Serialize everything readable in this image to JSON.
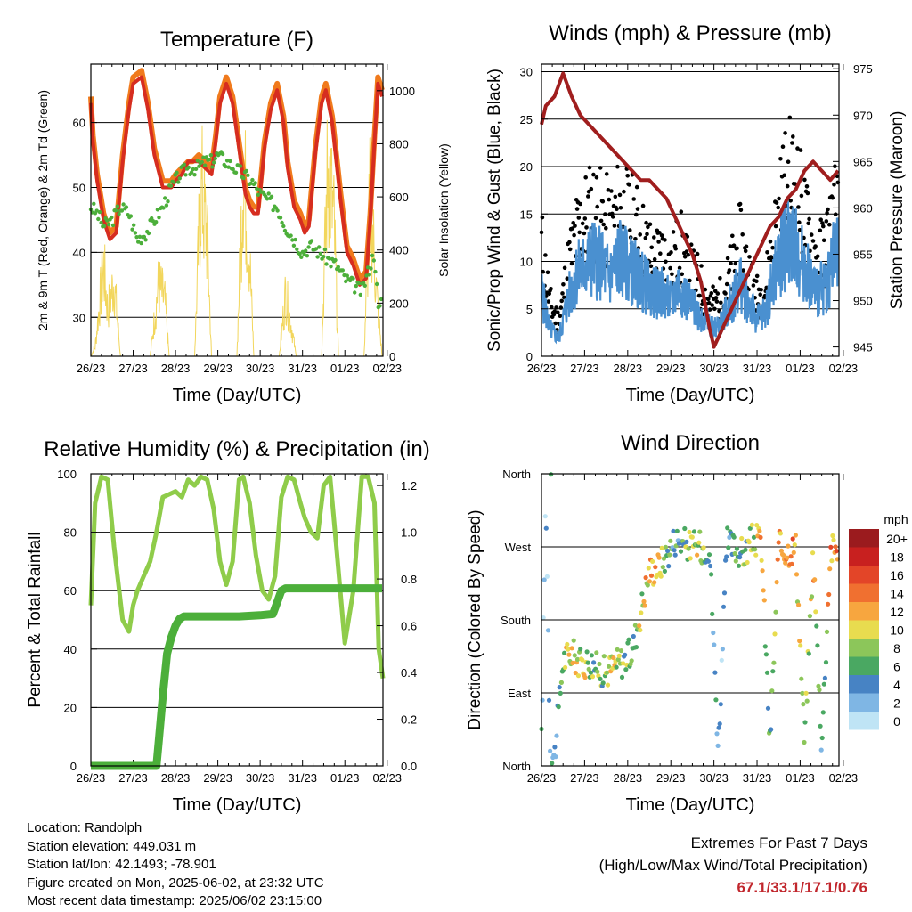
{
  "chart_data": [
    {
      "type": "line",
      "title": "Temperature (F)",
      "xlabel": "Time (Day/UTC)",
      "ylabel": "2m & 9m T (Red, Orange) & 2m Td (Green)",
      "y2label": "Solar Insolation (Yellow)",
      "x_ticks": [
        "26/23",
        "27/23",
        "28/23",
        "29/23",
        "30/23",
        "31/23",
        "01/23",
        "02/23"
      ],
      "ylim": [
        24,
        69
      ],
      "y_ticks": [
        30,
        40,
        50,
        60
      ],
      "y2lim": [
        0,
        1100
      ],
      "y2_ticks": [
        0,
        200,
        400,
        600,
        800,
        1000
      ],
      "colors": {
        "t2m": "#d62d20",
        "t9m": "#f07a1c",
        "td": "#4caf3a",
        "solar": "#f2d65c"
      },
      "series": [
        {
          "key": "t9m",
          "x": [
            0,
            0.05,
            0.15,
            0.3,
            0.45,
            0.6,
            0.75,
            0.9,
            1.0,
            1.2,
            1.35,
            1.5,
            1.7,
            1.9,
            2.0,
            2.15,
            2.3,
            2.4,
            2.55,
            2.7,
            2.85,
            2.95,
            3.05,
            3.2,
            3.35,
            3.5,
            3.65,
            3.75,
            3.85,
            3.95,
            4.1,
            4.25,
            4.4,
            4.55,
            4.65,
            4.8,
            4.95,
            5.05,
            5.15,
            5.3,
            5.45,
            5.55,
            5.7,
            5.9,
            6.05,
            6.2,
            6.35,
            6.5,
            6.6,
            6.7,
            6.78,
            6.88
          ],
          "y": [
            64,
            58,
            52,
            46,
            43,
            44,
            55,
            63,
            67,
            68,
            63,
            56,
            51,
            51,
            52,
            53,
            54,
            54,
            55,
            54,
            53,
            58,
            64,
            67,
            64,
            57,
            50,
            48,
            47,
            47,
            57,
            63,
            66,
            61,
            54,
            48,
            46,
            44,
            45,
            56,
            64,
            66,
            61,
            49,
            41,
            39,
            36,
            37,
            46,
            58,
            67,
            65
          ]
        },
        {
          "key": "t2m",
          "x": [
            0,
            0.05,
            0.15,
            0.3,
            0.45,
            0.6,
            0.75,
            0.9,
            1.0,
            1.2,
            1.35,
            1.5,
            1.7,
            1.9,
            2.0,
            2.15,
            2.3,
            2.4,
            2.55,
            2.7,
            2.85,
            2.95,
            3.05,
            3.2,
            3.35,
            3.5,
            3.65,
            3.75,
            3.85,
            3.95,
            4.1,
            4.25,
            4.4,
            4.55,
            4.65,
            4.8,
            4.95,
            5.05,
            5.15,
            5.3,
            5.45,
            5.55,
            5.7,
            5.9,
            6.05,
            6.2,
            6.35,
            6.5,
            6.6,
            6.7,
            6.78,
            6.88
          ],
          "y": [
            63,
            57,
            51,
            45,
            42,
            43,
            54,
            62,
            66,
            67,
            62,
            55,
            50,
            50,
            51,
            52,
            54,
            54,
            54,
            53,
            52,
            57,
            63,
            66,
            63,
            56,
            49,
            47,
            46,
            46,
            56,
            62,
            65,
            60,
            53,
            47,
            45,
            43,
            44,
            55,
            63,
            65,
            60,
            48,
            40,
            38,
            35,
            36,
            45,
            57,
            66,
            64
          ]
        },
        {
          "key": "td",
          "x": [
            0,
            0.15,
            0.3,
            0.5,
            0.7,
            0.9,
            1.1,
            1.3,
            1.5,
            1.7,
            1.9,
            2.1,
            2.3,
            2.5,
            2.7,
            2.85,
            3.0,
            3.2,
            3.4,
            3.6,
            3.8,
            4.0,
            4.2,
            4.4,
            4.6,
            4.8,
            5.0,
            5.2,
            5.4,
            5.6,
            5.8,
            6.0,
            6.2,
            6.4,
            6.55,
            6.7,
            6.8,
            6.88
          ],
          "y": [
            47,
            46,
            44,
            45,
            47,
            46,
            42,
            43,
            45,
            47,
            50,
            52,
            53,
            53,
            54,
            54,
            55,
            54,
            53,
            52,
            51,
            49,
            48,
            47,
            44,
            42,
            40,
            41,
            40,
            39,
            38,
            36,
            35,
            34,
            37,
            40,
            30,
            34
          ]
        },
        {
          "key": "solar",
          "x": [
            0,
            0.1,
            0.3,
            0.4,
            0.55,
            0.7,
            1.4,
            1.6,
            1.75,
            1.85,
            2.0,
            2.45,
            2.6,
            2.75,
            2.85,
            2.95,
            3.45,
            3.6,
            3.75,
            3.85,
            4.45,
            4.6,
            4.75,
            4.85,
            5.45,
            5.6,
            5.75,
            5.85,
            6.45,
            6.6,
            6.75,
            6.88
          ],
          "y": [
            0,
            50,
            500,
            250,
            420,
            0,
            0,
            400,
            300,
            0,
            0,
            0,
            950,
            650,
            0,
            0,
            0,
            1050,
            550,
            0,
            0,
            350,
            150,
            0,
            0,
            1090,
            700,
            0,
            0,
            900,
            350,
            0
          ]
        }
      ]
    },
    {
      "type": "scatter",
      "title": "Winds (mph) & Pressure (mb)",
      "xlabel": "Time (Day/UTC)",
      "ylabel": "Sonic/Prop Wind & Gust (Blue, Black)",
      "y2label": "Station Pressure (Maroon)",
      "x_ticks": [
        "26/23",
        "27/23",
        "28/23",
        "29/23",
        "30/23",
        "31/23",
        "01/23",
        "02/23"
      ],
      "ylim": [
        0,
        30.8
      ],
      "y_ticks": [
        0,
        5,
        10,
        15,
        20,
        25,
        30
      ],
      "y2lim": [
        944,
        975.5
      ],
      "y2_ticks": [
        945,
        950,
        955,
        960,
        965,
        970,
        975
      ],
      "colors": {
        "wind": "#4a90d0",
        "gust": "#000000",
        "pressure": "#a01e1e"
      },
      "series": [
        {
          "key": "wind",
          "x": [
            0,
            0.2,
            0.4,
            0.6,
            0.8,
            1.0,
            1.2,
            1.4,
            1.6,
            1.8,
            2.0,
            2.2,
            2.4,
            2.6,
            2.8,
            3.0,
            3.2,
            3.4,
            3.6,
            3.8,
            4.0,
            4.2,
            4.4,
            4.6,
            4.8,
            5.0,
            5.2,
            5.4,
            5.6,
            5.8,
            6.0,
            6.2,
            6.4,
            6.6,
            6.8
          ],
          "y": [
            7,
            3,
            2,
            6,
            9,
            10,
            11,
            10,
            9,
            11,
            10,
            9,
            8,
            7,
            7,
            6,
            8,
            6,
            5,
            4,
            3,
            4,
            6,
            8,
            6,
            4,
            5,
            9,
            12,
            13,
            11,
            9,
            7,
            8,
            11
          ]
        },
        {
          "key": "gust",
          "x": [
            0,
            0.2,
            0.4,
            0.6,
            0.8,
            1.0,
            1.2,
            1.4,
            1.6,
            1.8,
            2.0,
            2.2,
            2.4,
            2.6,
            2.8,
            3.0,
            3.2,
            3.4,
            3.6,
            3.8,
            4.0,
            4.2,
            4.4,
            4.6,
            4.8,
            5.0,
            5.2,
            5.4,
            5.6,
            5.8,
            6.0,
            6.2,
            6.4,
            6.6,
            6.8
          ],
          "y": [
            13,
            6,
            4,
            10,
            14,
            16,
            17,
            16,
            15,
            17,
            16,
            15,
            13,
            11,
            12,
            10,
            13,
            10,
            9,
            7,
            6,
            7,
            10,
            13,
            10,
            7,
            8,
            14,
            19,
            21,
            18,
            14,
            11,
            13,
            17
          ]
        },
        {
          "key": "pressure",
          "x": [
            0,
            0.1,
            0.3,
            0.5,
            0.7,
            0.9,
            1.1,
            1.3,
            1.5,
            1.7,
            1.9,
            2.1,
            2.3,
            2.5,
            2.7,
            2.9,
            3.1,
            3.3,
            3.5,
            3.7,
            3.9,
            4.0,
            4.1,
            4.3,
            4.5,
            4.7,
            4.9,
            5.1,
            5.3,
            5.5,
            5.7,
            5.9,
            6.1,
            6.3,
            6.5,
            6.7,
            6.88
          ],
          "y": [
            969,
            971,
            972,
            974.5,
            972,
            970,
            969,
            968,
            967,
            966,
            965,
            964,
            963,
            963,
            962,
            961,
            959,
            957,
            955,
            952,
            947,
            945,
            946,
            948,
            950,
            952,
            954,
            956,
            958,
            959,
            961,
            962,
            964,
            965,
            964,
            963,
            964
          ]
        }
      ]
    },
    {
      "type": "line",
      "title": "Relative Humidity (%) & Precipitation (in)",
      "xlabel": "Time (Day/UTC)",
      "ylabel": "Percent & Total Rainfall",
      "x_ticks": [
        "26/23",
        "27/23",
        "28/23",
        "29/23",
        "30/23",
        "31/23",
        "01/23",
        "02/23"
      ],
      "ylim": [
        0,
        100
      ],
      "y_ticks": [
        0,
        20,
        40,
        60,
        80,
        100
      ],
      "y2lim": [
        0,
        1.25
      ],
      "y2_ticks": [
        "0.0",
        "0.2",
        "0.4",
        "0.6",
        "0.8",
        "1.0",
        "1.2"
      ],
      "colors": {
        "rh": "#8fcc4a",
        "precip": "#4caf3a"
      },
      "series": [
        {
          "key": "rh",
          "x": [
            0,
            0.1,
            0.25,
            0.4,
            0.55,
            0.75,
            0.9,
            1.0,
            1.1,
            1.25,
            1.4,
            1.55,
            1.7,
            1.85,
            2.0,
            2.15,
            2.3,
            2.45,
            2.6,
            2.75,
            2.9,
            3.05,
            3.2,
            3.35,
            3.5,
            3.6,
            3.75,
            3.9,
            4.05,
            4.2,
            4.35,
            4.5,
            4.65,
            4.8,
            4.95,
            5.05,
            5.2,
            5.35,
            5.5,
            5.65,
            5.8,
            6.0,
            6.2,
            6.4,
            6.55,
            6.7,
            6.8,
            6.9
          ],
          "y": [
            55,
            90,
            99,
            98,
            75,
            50,
            46,
            55,
            60,
            65,
            70,
            80,
            92,
            93,
            94,
            92,
            98,
            96,
            99,
            98,
            88,
            70,
            62,
            70,
            98,
            99,
            90,
            72,
            60,
            57,
            65,
            92,
            99,
            98,
            90,
            85,
            80,
            78,
            96,
            99,
            75,
            42,
            60,
            99,
            99,
            90,
            40,
            30
          ]
        },
        {
          "key": "precip",
          "x": [
            0,
            0.5,
            1.0,
            1.55,
            1.6,
            1.7,
            1.8,
            1.9,
            2.0,
            2.1,
            2.2,
            2.5,
            3.0,
            3.5,
            4.0,
            4.3,
            4.4,
            4.5,
            4.6,
            5.0,
            5.5,
            6.0,
            6.5,
            6.88
          ],
          "y": [
            0,
            0,
            0,
            0,
            0.1,
            0.3,
            0.48,
            0.55,
            0.6,
            0.63,
            0.64,
            0.64,
            0.64,
            0.64,
            0.645,
            0.65,
            0.7,
            0.75,
            0.76,
            0.76,
            0.76,
            0.76,
            0.76,
            0.76
          ]
        }
      ]
    },
    {
      "type": "scatter",
      "title": "Wind Direction",
      "xlabel": "Time (Day/UTC)",
      "ylabel": "Direction (Colored By Speed)",
      "x_ticks": [
        "26/23",
        "27/23",
        "28/23",
        "29/23",
        "30/23",
        "31/23",
        "01/23",
        "02/23"
      ],
      "ylim": [
        0,
        360
      ],
      "y_ticks": [
        "North",
        "East",
        "South",
        "West",
        "North"
      ],
      "legend_title": "mph",
      "legend_labels": [
        "20+",
        "18",
        "16",
        "14",
        "12",
        "10",
        "8",
        "6",
        "4",
        "2",
        "0"
      ],
      "legend_colors": [
        "#9b1b1e",
        "#c8201f",
        "#e34528",
        "#f07030",
        "#f7a63f",
        "#e8dc4f",
        "#8cc65a",
        "#4aa862",
        "#4783c4",
        "#7fb6e4",
        "#bfe4f5"
      ],
      "series": [
        {
          "key": "direction",
          "x": [
            0,
            0.1,
            0.2,
            0.3,
            0.5,
            0.7,
            0.9,
            1.1,
            1.3,
            1.5,
            1.7,
            1.9,
            2.1,
            2.3,
            2.5,
            2.7,
            2.9,
            3.1,
            3.3,
            3.5,
            3.7,
            3.9,
            4.1,
            4.3,
            4.5,
            4.7,
            4.9,
            5.1,
            5.3,
            5.5,
            5.7,
            5.9,
            6.1,
            6.3,
            6.5,
            6.7,
            6.85
          ],
          "y": [
            30,
            340,
            20,
            10,
            130,
            140,
            125,
            130,
            120,
            115,
            125,
            130,
            140,
            190,
            240,
            245,
            260,
            280,
            275,
            270,
            270,
            270,
            20,
            275,
            268,
            260,
            280,
            275,
            25,
            270,
            265,
            270,
            28,
            262,
            25,
            265,
            270
          ],
          "speed": [
            3,
            2,
            4,
            3,
            8,
            10,
            9,
            8,
            7,
            8,
            9,
            7,
            6,
            9,
            11,
            12,
            6,
            5,
            7,
            8,
            10,
            5,
            3,
            5,
            6,
            7,
            8,
            12,
            4,
            13,
            14,
            13,
            5,
            12,
            4,
            13,
            14
          ]
        }
      ]
    }
  ],
  "footer": {
    "location": "Location: Randolph",
    "elevation": "Station elevation: 449.031 m",
    "latlon": "Station lat/lon: 42.1493; -78.901",
    "created": "Figure created on Mon, 2025-06-02, at 23:32 UTC",
    "recent": "Most recent data timestamp: 2025/06/02 23:15:00"
  },
  "extremes": {
    "title": "Extremes For Past 7 Days",
    "subtitle": "(High/Low/Max Wind/Total Precipitation)",
    "values": "67.1/33.1/17.1/0.76"
  }
}
